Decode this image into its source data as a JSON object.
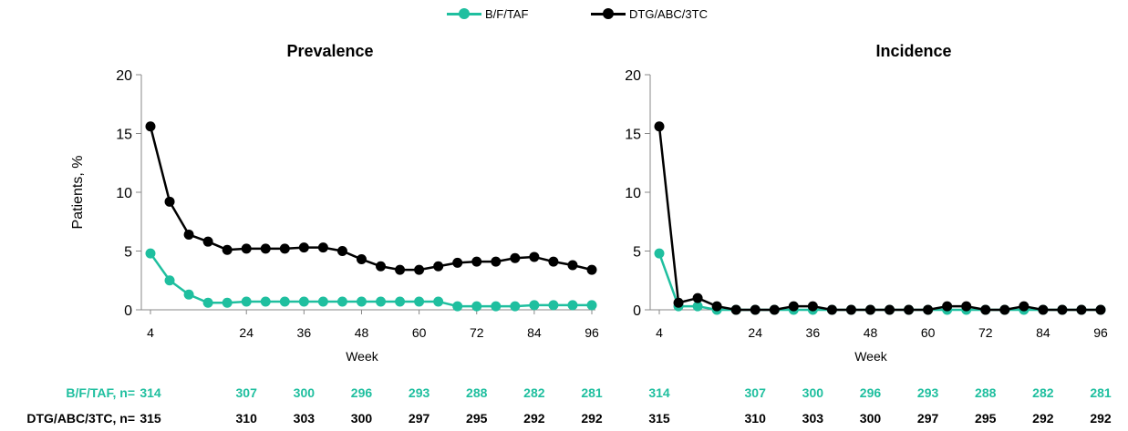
{
  "legend": [
    {
      "label": "B/F/TAF",
      "color": "#1fbf9f"
    },
    {
      "label": "DTG/ABC/3TC",
      "color": "#000000"
    }
  ],
  "chart_data": [
    {
      "type": "line",
      "title": "Prevalence",
      "xlabel": "Week",
      "ylabel": "Patients, %",
      "xlim": [
        4,
        96
      ],
      "ylim": [
        0,
        20
      ],
      "xticks": [
        4,
        24,
        36,
        48,
        60,
        72,
        84,
        96
      ],
      "yticks": [
        0,
        5,
        10,
        15,
        20
      ],
      "grid": false,
      "legend_position": "top-center",
      "series": [
        {
          "name": "B/F/TAF",
          "color": "#1fbf9f",
          "x": [
            4,
            8,
            12,
            16,
            20,
            24,
            28,
            32,
            36,
            40,
            44,
            48,
            52,
            56,
            60,
            64,
            68,
            72,
            76,
            80,
            84,
            88,
            92,
            96
          ],
          "y": [
            4.8,
            2.5,
            1.3,
            0.6,
            0.6,
            0.7,
            0.7,
            0.7,
            0.7,
            0.7,
            0.7,
            0.7,
            0.7,
            0.7,
            0.7,
            0.7,
            0.3,
            0.3,
            0.3,
            0.3,
            0.4,
            0.4,
            0.4,
            0.4
          ]
        },
        {
          "name": "DTG/ABC/3TC",
          "color": "#000000",
          "x": [
            4,
            8,
            12,
            16,
            20,
            24,
            28,
            32,
            36,
            40,
            44,
            48,
            52,
            56,
            60,
            64,
            68,
            72,
            76,
            80,
            84,
            88,
            92,
            96
          ],
          "y": [
            15.6,
            9.2,
            6.4,
            5.8,
            5.1,
            5.2,
            5.2,
            5.2,
            5.3,
            5.3,
            5.0,
            4.3,
            3.7,
            3.4,
            3.4,
            3.7,
            4.0,
            4.1,
            4.1,
            4.4,
            4.5,
            4.1,
            3.8,
            3.4
          ]
        }
      ]
    },
    {
      "type": "line",
      "title": "Incidence",
      "xlabel": "Week",
      "ylabel": "",
      "xlim": [
        4,
        96
      ],
      "ylim": [
        0,
        20
      ],
      "xticks": [
        4,
        24,
        36,
        48,
        60,
        72,
        84,
        96
      ],
      "yticks": [
        0,
        5,
        10,
        15,
        20
      ],
      "grid": false,
      "series": [
        {
          "name": "B/F/TAF",
          "color": "#1fbf9f",
          "x": [
            4,
            8,
            12,
            16,
            20,
            24,
            28,
            32,
            36,
            40,
            44,
            48,
            52,
            56,
            60,
            64,
            68,
            72,
            76,
            80,
            84,
            88,
            92,
            96
          ],
          "y": [
            4.8,
            0.3,
            0.3,
            0,
            0,
            0,
            0,
            0,
            0,
            0,
            0,
            0,
            0,
            0,
            0,
            0,
            0,
            0,
            0,
            0,
            0,
            0,
            0,
            0
          ]
        },
        {
          "name": "DTG/ABC/3TC",
          "color": "#000000",
          "x": [
            4,
            8,
            12,
            16,
            20,
            24,
            28,
            32,
            36,
            40,
            44,
            48,
            52,
            56,
            60,
            64,
            68,
            72,
            76,
            80,
            84,
            88,
            92,
            96
          ],
          "y": [
            15.6,
            0.6,
            1.0,
            0.3,
            0,
            0,
            0,
            0.3,
            0.3,
            0,
            0,
            0,
            0,
            0,
            0,
            0.3,
            0.3,
            0,
            0,
            0.3,
            0,
            0,
            0,
            0
          ]
        }
      ]
    }
  ],
  "n_table": {
    "weeks": [
      4,
      24,
      36,
      48,
      60,
      72,
      84,
      96
    ],
    "rows": [
      {
        "label": "B/F/TAF, n=",
        "color": "#1fbf9f",
        "prevalence": [
          "314",
          "307",
          "300",
          "296",
          "293",
          "288",
          "282",
          "281"
        ],
        "incidence": [
          "314",
          "307",
          "300",
          "296",
          "293",
          "288",
          "282",
          "281"
        ]
      },
      {
        "label": "DTG/ABC/3TC, n=",
        "color": "#000000",
        "prevalence": [
          "315",
          "310",
          "303",
          "300",
          "297",
          "295",
          "292",
          "292"
        ],
        "incidence": [
          "315",
          "310",
          "303",
          "300",
          "297",
          "295",
          "292",
          "292"
        ]
      }
    ]
  }
}
